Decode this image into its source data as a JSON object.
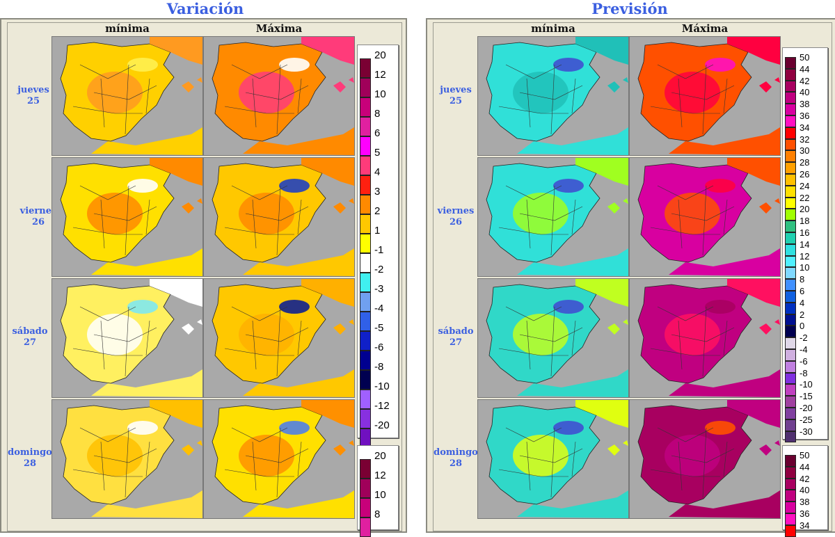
{
  "titles": {
    "variacion": "Variación",
    "prevision": "Previsión"
  },
  "columns": {
    "min": "mínima",
    "max": "Máxima"
  },
  "days": [
    {
      "name": "jueves",
      "num": "25"
    },
    {
      "name": "viernes",
      "num": "26"
    },
    {
      "name": "sábado",
      "num": "27"
    },
    {
      "name": "domingo",
      "num": "28"
    }
  ],
  "variation_legend": {
    "labels": [
      "20",
      "12",
      "10",
      "8",
      "6",
      "5",
      "4",
      "3",
      "2",
      "1",
      "-1",
      "-2",
      "-3",
      "-4",
      "-5",
      "-6",
      "-8",
      "-10",
      "-12",
      "-20"
    ],
    "colors": [
      "#7a0033",
      "#a0005a",
      "#c8007a",
      "#e020a0",
      "#ff00ff",
      "#ff3b7a",
      "#ff2010",
      "#ff8a00",
      "#ffc800",
      "#ffff00",
      "#ffffff",
      "#40f0f0",
      "#70a0f0",
      "#3060e8",
      "#1020c8",
      "#000090",
      "#000050",
      "#a060ff",
      "#8830e0",
      "#7010c0"
    ]
  },
  "variation_legend2": {
    "labels": [
      "20",
      "12",
      "10",
      "8"
    ],
    "colors": [
      "#7a0033",
      "#a0005a",
      "#c8007a",
      "#e020a0"
    ]
  },
  "forecast_legend": {
    "labels": [
      "50",
      "44",
      "42",
      "40",
      "38",
      "36",
      "34",
      "32",
      "30",
      "28",
      "26",
      "24",
      "22",
      "20",
      "18",
      "16",
      "14",
      "12",
      "10",
      "8",
      "6",
      "4",
      "2",
      "0",
      "-2",
      "-4",
      "-6",
      "-8",
      "-10",
      "-15",
      "-20",
      "-25",
      "-30"
    ],
    "colors": [
      "#6a0030",
      "#900040",
      "#a80060",
      "#c00080",
      "#d800a0",
      "#ff10c0",
      "#ff0000",
      "#ff5000",
      "#ff8000",
      "#ffa000",
      "#ffc000",
      "#ffe000",
      "#ffff00",
      "#a0ff00",
      "#30c080",
      "#20d0b0",
      "#30e0e0",
      "#50f0ff",
      "#80d8ff",
      "#4090ff",
      "#1060e0",
      "#0030c0",
      "#001090",
      "#000050",
      "#e0d8e8",
      "#d0b0e0",
      "#c080e0",
      "#8030e0",
      "#c040c0",
      "#a040a0",
      "#8040a0",
      "#704090",
      "#503070"
    ]
  },
  "forecast_legend2": {
    "labels": [
      "50",
      "44",
      "42",
      "40",
      "38",
      "36",
      "34"
    ],
    "colors": [
      "#6a0030",
      "#900040",
      "#a80060",
      "#c00080",
      "#d800a0",
      "#ff10c0",
      "#ff0000"
    ]
  }
}
